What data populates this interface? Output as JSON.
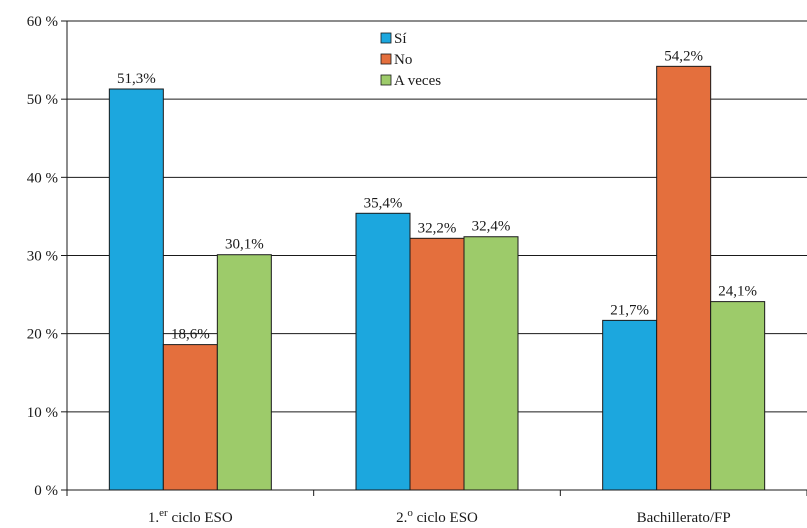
{
  "chart_data": {
    "type": "bar",
    "title": "",
    "xlabel": "",
    "ylabel": "",
    "categories": [
      "1.er ciclo ESO",
      "2.º ciclo ESO",
      "Bachillerato/FP"
    ],
    "categories_display": [
      {
        "main": "1.",
        "sup": "er",
        "rest": " ciclo ESO"
      },
      {
        "main": "2.",
        "sup": "o",
        "rest": " ciclo ESO"
      },
      {
        "main": "Bachillerato/FP",
        "sup": "",
        "rest": ""
      }
    ],
    "series": [
      {
        "name": "Sí",
        "values": [
          51.3,
          35.4,
          21.7
        ],
        "labels": [
          "51,3%",
          "35,4%",
          "21,7%"
        ],
        "color": "#1ca7de"
      },
      {
        "name": "No",
        "values": [
          18.6,
          32.2,
          54.2
        ],
        "labels": [
          "18,6%",
          "32,2%",
          "54,2%"
        ],
        "color": "#e46f3d"
      },
      {
        "name": "A veces",
        "values": [
          30.1,
          32.4,
          24.1
        ],
        "labels": [
          "30,1%",
          "32,4%",
          "24,1%"
        ],
        "color": "#9dcb6a"
      }
    ],
    "ylim": [
      0,
      60
    ],
    "yticks": [
      0,
      10,
      20,
      30,
      40,
      50,
      60
    ],
    "ytick_labels": [
      "0 %",
      "10 %",
      "20 %",
      "30 %",
      "40 %",
      "50 %",
      "60 %"
    ],
    "grid": true,
    "legend_position": "top-center"
  }
}
